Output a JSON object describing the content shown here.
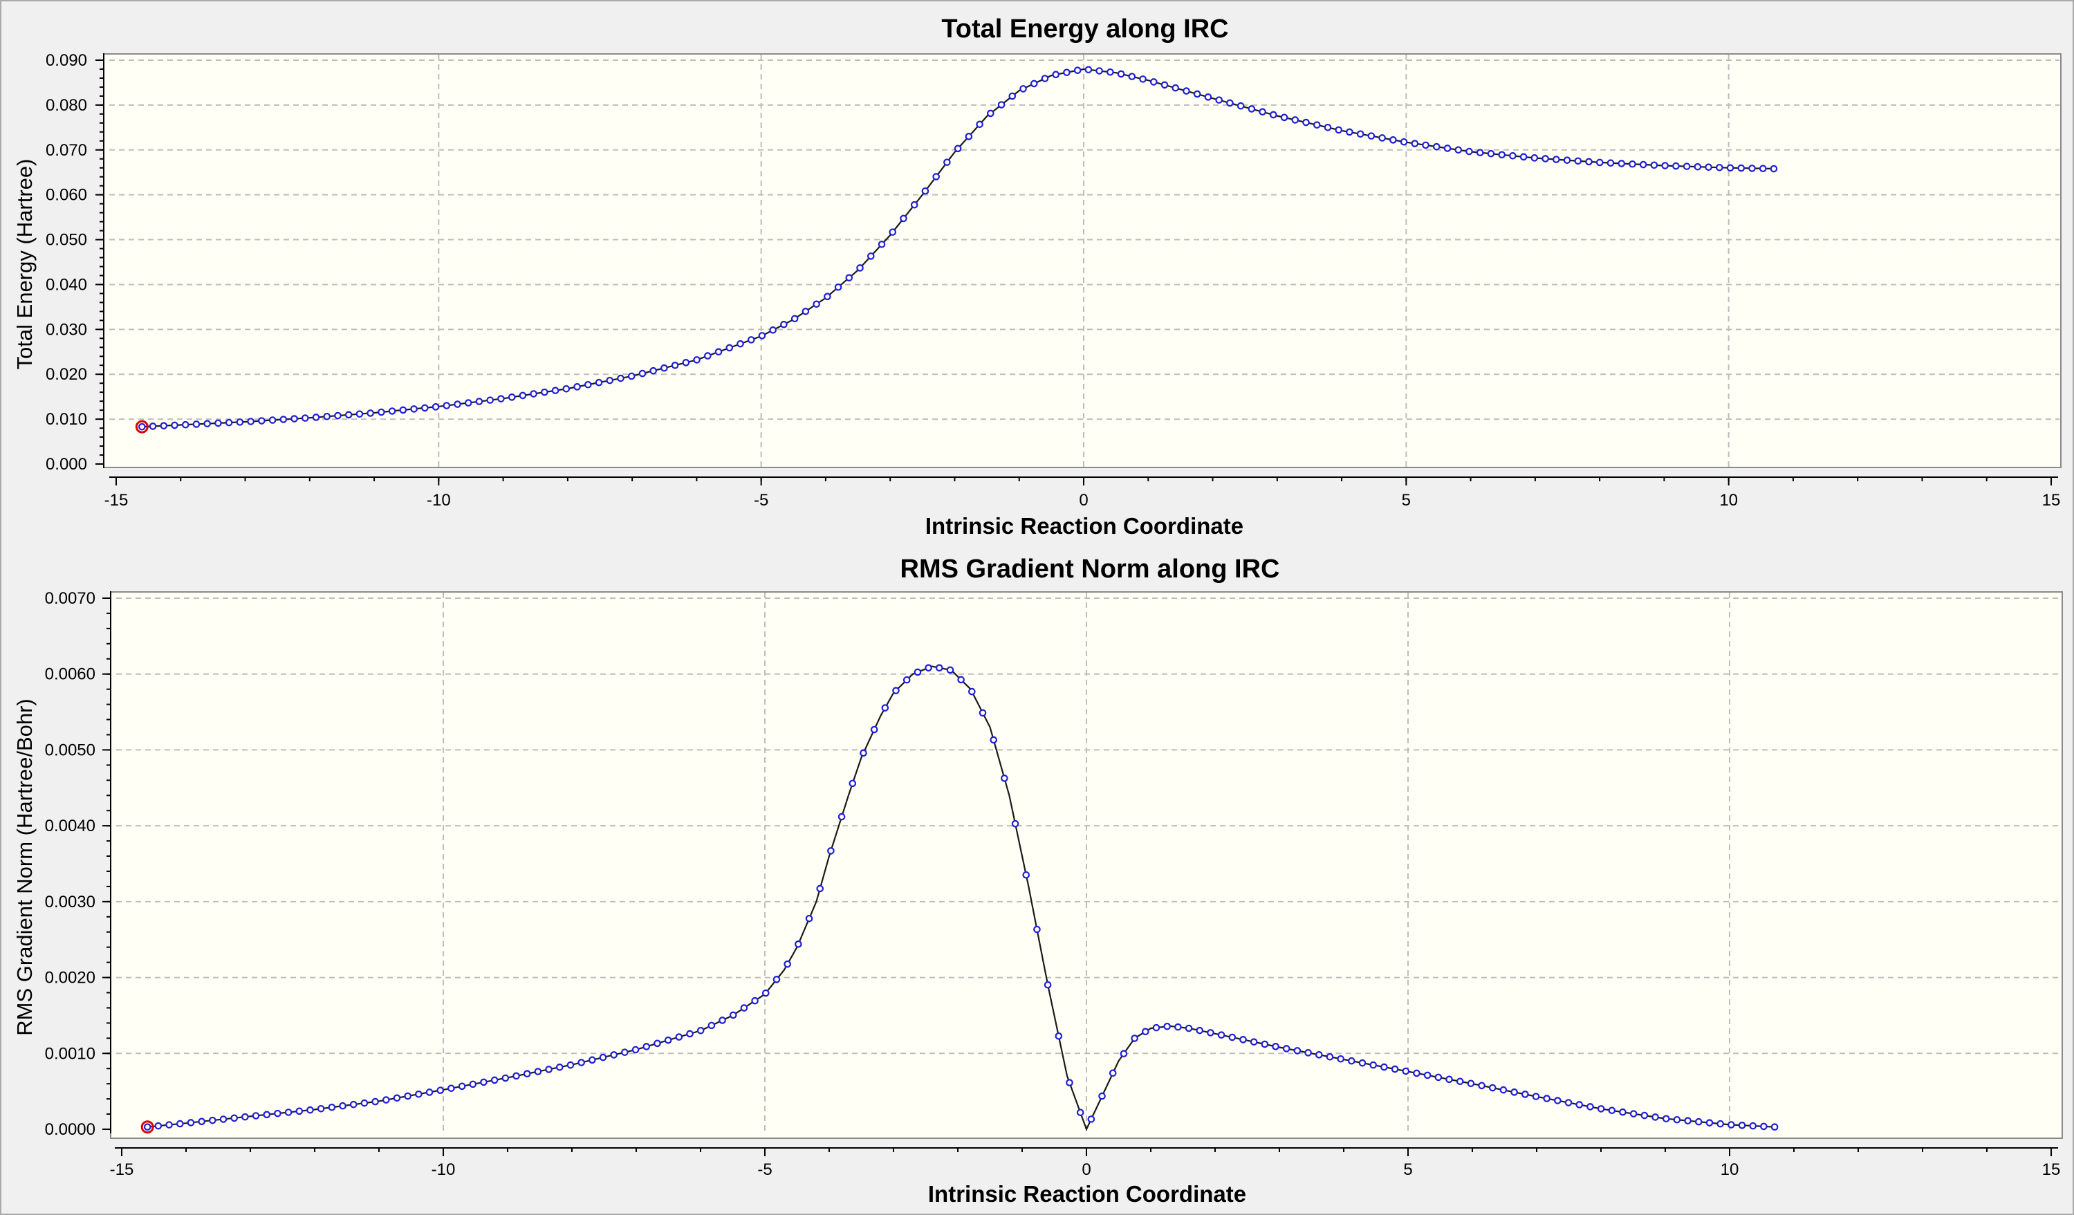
{
  "window": {
    "type": "chart-viewer"
  },
  "colors": {
    "plot_bg": "#fffff6",
    "point": "#1f1fd6",
    "line": "#1a1a1a",
    "current_point": "#e00000",
    "grid": "#bdbdbd"
  },
  "chart_data": [
    {
      "type": "line",
      "title": "Total Energy along IRC",
      "xlabel": "Intrinsic Reaction Coordinate",
      "ylabel": "Total Energy (Hartree)",
      "xlim": [
        -15,
        15
      ],
      "ylim": [
        0.0,
        0.09
      ],
      "xticks": [
        -15,
        -10,
        -5,
        0,
        5,
        10,
        15
      ],
      "yticks": [
        "0.000",
        "0.010",
        "0.020",
        "0.030",
        "0.040",
        "0.050",
        "0.060",
        "0.070",
        "0.080",
        "0.090"
      ],
      "grid": true,
      "legend": "none",
      "marker": "open-circle",
      "highlighted_point": {
        "x": -14.6,
        "y": 0.0083
      },
      "series": [
        {
          "points": [
            [
              -14.6,
              0.0083
            ],
            [
              -14.0,
              0.0087
            ],
            [
              -13.0,
              0.0094
            ],
            [
              -12.0,
              0.0103
            ],
            [
              -11.0,
              0.0114
            ],
            [
              -10.0,
              0.0128
            ],
            [
              -9.0,
              0.0146
            ],
            [
              -8.0,
              0.0168
            ],
            [
              -7.0,
              0.0196
            ],
            [
              -6.0,
              0.0232
            ],
            [
              -5.0,
              0.0285
            ],
            [
              -4.5,
              0.0322
            ],
            [
              -4.0,
              0.037
            ],
            [
              -3.5,
              0.0432
            ],
            [
              -3.0,
              0.051
            ],
            [
              -2.5,
              0.06
            ],
            [
              -2.0,
              0.0695
            ],
            [
              -1.5,
              0.0775
            ],
            [
              -1.0,
              0.0832
            ],
            [
              -0.5,
              0.0866
            ],
            [
              0.0,
              0.088
            ],
            [
              0.5,
              0.0872
            ],
            [
              1.0,
              0.0855
            ],
            [
              2.0,
              0.0815
            ],
            [
              3.0,
              0.0776
            ],
            [
              4.0,
              0.0743
            ],
            [
              5.0,
              0.0717
            ],
            [
              6.0,
              0.0696
            ],
            [
              7.0,
              0.0682
            ],
            [
              8.0,
              0.0672
            ],
            [
              9.0,
              0.0665
            ],
            [
              10.0,
              0.066
            ],
            [
              10.7,
              0.0658
            ]
          ]
        }
      ]
    },
    {
      "type": "line",
      "title": "RMS Gradient Norm along IRC",
      "xlabel": "Intrinsic Reaction Coordinate",
      "ylabel": "RMS Gradient Norm (Hartree/Bohr)",
      "xlim": [
        -15,
        15
      ],
      "ylim": [
        0.0,
        0.007
      ],
      "xticks": [
        -15,
        -10,
        -5,
        0,
        5,
        10,
        15
      ],
      "yticks": [
        "0.0000",
        "0.0010",
        "0.0020",
        "0.0030",
        "0.0040",
        "0.0050",
        "0.0060",
        "0.0070"
      ],
      "grid": true,
      "legend": "none",
      "marker": "open-circle",
      "highlighted_point": {
        "x": -14.6,
        "y": 3e-05
      },
      "series": [
        {
          "points": [
            [
              -14.6,
              3e-05
            ],
            [
              -14.0,
              8e-05
            ],
            [
              -13.0,
              0.00017
            ],
            [
              -12.0,
              0.00026
            ],
            [
              -11.0,
              0.00037
            ],
            [
              -10.0,
              0.00052
            ],
            [
              -9.0,
              0.00068
            ],
            [
              -8.0,
              0.00085
            ],
            [
              -7.0,
              0.00105
            ],
            [
              -6.0,
              0.0013
            ],
            [
              -5.5,
              0.0015
            ],
            [
              -5.0,
              0.00178
            ],
            [
              -4.7,
              0.0021
            ],
            [
              -4.5,
              0.0024
            ],
            [
              -4.2,
              0.003
            ],
            [
              -4.0,
              0.0036
            ],
            [
              -3.7,
              0.0044
            ],
            [
              -3.5,
              0.0049
            ],
            [
              -3.2,
              0.00545
            ],
            [
              -3.0,
              0.00575
            ],
            [
              -2.7,
              0.006
            ],
            [
              -2.4,
              0.0061
            ],
            [
              -2.1,
              0.00605
            ],
            [
              -1.8,
              0.0058
            ],
            [
              -1.5,
              0.0053
            ],
            [
              -1.2,
              0.0044
            ],
            [
              -0.9,
              0.0032
            ],
            [
              -0.6,
              0.0019
            ],
            [
              -0.3,
              0.0007
            ],
            [
              0.0,
              0.0
            ],
            [
              0.25,
              0.00045
            ],
            [
              0.5,
              0.0009
            ],
            [
              0.75,
              0.0012
            ],
            [
              1.0,
              0.00133
            ],
            [
              1.3,
              0.00136
            ],
            [
              1.6,
              0.00133
            ],
            [
              2.0,
              0.00126
            ],
            [
              3.0,
              0.00108
            ],
            [
              4.0,
              0.00092
            ],
            [
              5.0,
              0.00076
            ],
            [
              6.0,
              0.0006
            ],
            [
              7.0,
              0.00043
            ],
            [
              8.0,
              0.00027
            ],
            [
              9.0,
              0.00014
            ],
            [
              10.0,
              6e-05
            ],
            [
              10.7,
              3e-05
            ]
          ]
        }
      ]
    }
  ]
}
